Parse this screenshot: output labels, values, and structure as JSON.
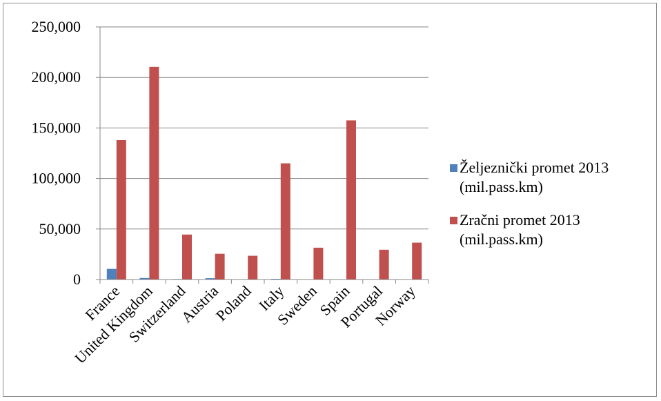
{
  "chart_data": {
    "type": "bar",
    "categories": [
      "France",
      "United Kingdom",
      "Switzerland",
      "Austria",
      "Poland",
      "Italy",
      "Sweden",
      "Spain",
      "Portugal",
      "Norway"
    ],
    "series": [
      {
        "name": "Željeznički promet 2013\n(mil.pass.km)",
        "color": "#4f81bd",
        "values": [
          10500,
          1500,
          500,
          1300,
          200,
          700,
          300,
          100,
          200,
          100
        ]
      },
      {
        "name": "Zračni promet 2013\n(mil.pass.km)",
        "color": "#c0504d",
        "values": [
          138000,
          210500,
          44500,
          25500,
          23500,
          115000,
          31500,
          157500,
          29500,
          36500
        ]
      }
    ],
    "yticks": [
      "0",
      "50,000",
      "100,000",
      "150,000",
      "200,000",
      "250,000"
    ],
    "ylim": [
      0,
      250000
    ],
    "grid": true,
    "legend_position": "right"
  }
}
